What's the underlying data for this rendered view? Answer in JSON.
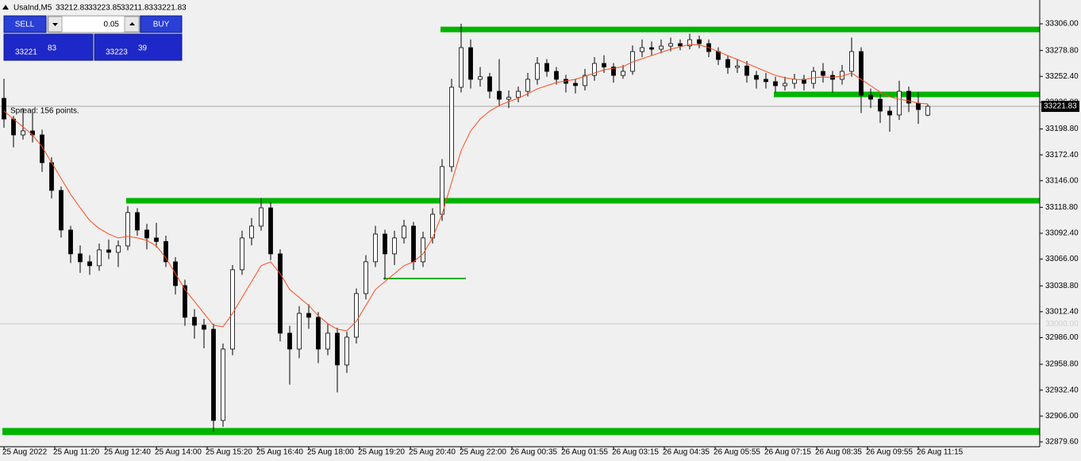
{
  "chart_data": {
    "type": "candlestick",
    "title": "UsaInd,M5",
    "header_values": [
      "33212.83",
      "33223.85",
      "33211.83",
      "33221.83"
    ],
    "spread_text": "Spread: 156 points.",
    "trade_panel": {
      "sell": "SELL",
      "buy": "BUY",
      "lot": "0.05",
      "bid_big": "33221",
      "bid_small": "83",
      "ask_big": "33223",
      "ask_small": "39"
    },
    "up_color": "#ffffff",
    "down_color": "#000000",
    "ma_color": "#ff4a1c",
    "ylim": [
      32874.7,
      33330.3
    ],
    "yticks": [
      {
        "value": 33306.0,
        "label": "33306.00"
      },
      {
        "value": 33278.8,
        "label": "33278.80"
      },
      {
        "value": 33252.4,
        "label": "33252.40"
      },
      {
        "value": 33226.0,
        "label": "33226.00"
      },
      {
        "value": 33198.8,
        "label": "33198.80"
      },
      {
        "value": 33172.4,
        "label": "33172.40"
      },
      {
        "value": 33146.0,
        "label": "33146.00"
      },
      {
        "value": 33118.8,
        "label": "33118.80"
      },
      {
        "value": 33092.4,
        "label": "33092.40"
      },
      {
        "value": 33066.0,
        "label": "33066.00"
      },
      {
        "value": 33038.8,
        "label": "33038.80"
      },
      {
        "value": 33012.4,
        "label": "33012.40"
      },
      {
        "value": 32986.0,
        "label": "32986.00"
      },
      {
        "value": 32958.8,
        "label": "32958.80"
      },
      {
        "value": 32932.4,
        "label": "32932.40"
      },
      {
        "value": 32906.0,
        "label": "32906.00"
      },
      {
        "value": 32879.6,
        "label": "32879.60"
      }
    ],
    "xlabels": [
      "25 Aug 2022",
      "25 Aug 11:20",
      "25 Aug 12:40",
      "25 Aug 14:00",
      "25 Aug 15:20",
      "25 Aug 16:40",
      "25 Aug 18:00",
      "25 Aug 19:20",
      "25 Aug 20:40",
      "25 Aug 22:00",
      "26 Aug 00:35",
      "26 Aug 01:55",
      "26 Aug 03:15",
      "26 Aug 04:35",
      "26 Aug 05:55",
      "26 Aug 07:15",
      "26 Aug 08:35",
      "26 Aug 09:55",
      "26 Aug 11:15"
    ],
    "bid": {
      "value": 33221.83,
      "label": "33221.83"
    },
    "price_line": {
      "value": 33000,
      "label": "33000.00"
    },
    "levels": [
      {
        "value": 33300.3,
        "start": 46,
        "width": 7,
        "color": "#00b400"
      },
      {
        "value": 33234.0,
        "start": 81,
        "width": 7,
        "color": "#00b400"
      },
      {
        "value": 33125.6,
        "start": 13,
        "width": 7,
        "color": "#00b400"
      },
      {
        "value": 32890.2,
        "start": 0,
        "width": 9,
        "color": "#00b400"
      },
      {
        "value": 33046.3,
        "start": 40,
        "end": 48,
        "width": 2,
        "color": "#00b400"
      }
    ],
    "candles": [
      [
        33230,
        33250,
        33200,
        33208.9
      ],
      [
        33208.9,
        33212,
        33180,
        33192.7
      ],
      [
        33192.7,
        33220,
        33188,
        33196.8
      ],
      [
        33196.8,
        33215,
        33185,
        33192.7
      ],
      [
        33192.7,
        33198,
        33155,
        33164.4
      ],
      [
        33164.4,
        33170,
        33128,
        33136.1
      ],
      [
        33136.1,
        33140,
        33088,
        33095.7
      ],
      [
        33095.7,
        33100,
        33062,
        33071.4
      ],
      [
        33071.4,
        33080,
        33052,
        33063.3
      ],
      [
        33063.3,
        33070,
        33050,
        33059.3
      ],
      [
        33059.3,
        33082,
        33054,
        33075.4
      ],
      [
        33075.4,
        33086,
        33066,
        33073.0
      ],
      [
        33073.0,
        33085,
        33058,
        33079.5
      ],
      [
        33079.5,
        33120,
        33075,
        33113.5
      ],
      [
        33113.5,
        33118,
        33090,
        33095.7
      ],
      [
        33095.7,
        33102,
        33076,
        33087.6
      ],
      [
        33087.6,
        33103,
        33078,
        33084.0
      ],
      [
        33084.0,
        33090,
        33058,
        33063.3
      ],
      [
        33063.3,
        33068,
        33030,
        33039.0
      ],
      [
        33039.0,
        33045,
        32998,
        33006.7
      ],
      [
        33006.7,
        33015,
        32985,
        32998.6
      ],
      [
        32998.6,
        33005,
        32975,
        32994.5
      ],
      [
        32994.5,
        33000,
        32890,
        32901.5
      ],
      [
        32901.5,
        32980,
        32895,
        32974.3
      ],
      [
        32974.3,
        33060,
        32968,
        33055.2
      ],
      [
        33055.2,
        33095,
        33050,
        33087.6
      ],
      [
        33087.6,
        33108,
        33080,
        33099.7
      ],
      [
        33099.7,
        33128,
        33095,
        33118.3
      ],
      [
        33118.3,
        33124,
        33065,
        33071.4
      ],
      [
        33071.4,
        33076,
        32982,
        32990.5
      ],
      [
        32990.5,
        32998,
        32938,
        32974.3
      ],
      [
        32974.3,
        33018,
        32965,
        33010.7
      ],
      [
        33010.7,
        33020,
        32995,
        33006.7
      ],
      [
        33006.7,
        33012,
        32960,
        32974.3
      ],
      [
        32974.3,
        33000,
        32968,
        32990.5
      ],
      [
        32990.5,
        32996,
        32930,
        32958.1
      ],
      [
        32958.1,
        32992,
        32950,
        32986.4
      ],
      [
        32986.4,
        33036,
        32980,
        33030.9
      ],
      [
        33030.9,
        33070,
        33025,
        33063.3
      ],
      [
        33063.3,
        33100,
        33058,
        33091.6
      ],
      [
        33091.6,
        33096,
        33045,
        33071.4
      ],
      [
        33071.4,
        33095,
        33060,
        33087.6
      ],
      [
        33087.6,
        33106,
        33082,
        33099.7
      ],
      [
        33099.7,
        33104,
        33055,
        33063.3
      ],
      [
        33063.3,
        33094,
        33058,
        33087.6
      ],
      [
        33087.6,
        33118,
        33082,
        33111.8
      ],
      [
        33111.8,
        33168,
        33105,
        33160.4
      ],
      [
        33160.4,
        33250,
        33155,
        33241.3
      ],
      [
        33241.3,
        33306,
        33236,
        33281.7
      ],
      [
        33281.7,
        33290,
        33240,
        33249.4
      ],
      [
        33249.4,
        33262,
        33242,
        33252.0
      ],
      [
        33252.0,
        33256,
        33230,
        33237.2
      ],
      [
        33237.2,
        33270,
        33222,
        33229.1
      ],
      [
        33229.1,
        33238,
        33220,
        33231.0
      ],
      [
        33231.0,
        33242,
        33226,
        33237.2
      ],
      [
        33237.2,
        33256,
        33232,
        33249.4
      ],
      [
        33249.4,
        33272,
        33244,
        33265.6
      ],
      [
        33265.6,
        33270,
        33252,
        33257.5
      ],
      [
        33257.5,
        33262,
        33244,
        33249.4
      ],
      [
        33249.4,
        33254,
        33236,
        33245.3
      ],
      [
        33245.3,
        33250,
        33235,
        33243.0
      ],
      [
        33243.0,
        33260,
        33238,
        33253.4
      ],
      [
        33253.4,
        33272,
        33248,
        33265.6
      ],
      [
        33265.6,
        33274,
        33256,
        33262.0
      ],
      [
        33262.0,
        33266,
        33246,
        33253.4
      ],
      [
        33253.4,
        33264,
        33250,
        33257.5
      ],
      [
        33257.5,
        33284,
        33254,
        33277.7
      ],
      [
        33277.7,
        33290,
        33272,
        33281.7
      ],
      [
        33281.7,
        33288,
        33274,
        33280.1
      ],
      [
        33280.1,
        33290,
        33276,
        33283.3
      ],
      [
        33283.3,
        33292,
        33278,
        33285.8
      ],
      [
        33285.8,
        33290,
        33279,
        33283.5
      ],
      [
        33283.5,
        33296,
        33280,
        33289.8
      ],
      [
        33289.8,
        33294,
        33281,
        33285.8
      ],
      [
        33285.8,
        33290,
        33272,
        33277.7
      ],
      [
        33277.7,
        33282,
        33264,
        33269.6
      ],
      [
        33269.6,
        33274,
        33255,
        33261.5
      ],
      [
        33261.5,
        33270,
        33256,
        33263.0
      ],
      [
        33263.0,
        33268,
        33246,
        33253.4
      ],
      [
        33253.4,
        33258,
        33240,
        33249.4
      ],
      [
        33249.4,
        33256,
        33240,
        33247.0
      ],
      [
        33247.0,
        33252,
        33236,
        33242.9
      ],
      [
        33242.9,
        33252,
        33238,
        33245.3
      ],
      [
        33245.3,
        33255,
        33240,
        33249.4
      ],
      [
        33249.4,
        33254,
        33238,
        33245.3
      ],
      [
        33245.3,
        33262,
        33240,
        33257.5
      ],
      [
        33257.5,
        33266,
        33246,
        33253.4
      ],
      [
        33253.4,
        33258,
        33236,
        33249.4
      ],
      [
        33249.4,
        33264,
        33244,
        33257.5
      ],
      [
        33257.5,
        33292,
        33252,
        33277.7
      ],
      [
        33277.7,
        33282,
        33215,
        33233.2
      ],
      [
        33233.2,
        33240,
        33220,
        33229.1
      ],
      [
        33229.1,
        33234,
        33205,
        33217.0
      ],
      [
        33217.0,
        33222,
        33196,
        33213.0
      ],
      [
        33213.0,
        33248,
        33208,
        33237.2
      ],
      [
        33237.2,
        33242,
        33216,
        33225.1
      ],
      [
        33225.1,
        33236,
        33204,
        33218.6
      ],
      [
        33212.83,
        33223.85,
        33211.83,
        33221.83
      ]
    ],
    "ma": [
      33217.0,
      33208.9,
      33200.8,
      33192.7,
      33180.6,
      33164.4,
      33148.2,
      33132.1,
      33118.3,
      33105.4,
      33097.3,
      33091.6,
      33087.6,
      33089.2,
      33087.6,
      33085.1,
      33079.5,
      33067.3,
      33051.2,
      33035.0,
      33022.9,
      33010.7,
      32998.6,
      32997.0,
      33010.7,
      33026.9,
      33043.1,
      33059.3,
      33063.3,
      33051.2,
      33035.0,
      33026.9,
      33018.8,
      33008.3,
      33000.2,
      32994.5,
      32993.0,
      33002.6,
      33018.8,
      33035.0,
      33043.1,
      33051.2,
      33059.3,
      33063.3,
      33071.4,
      33087.6,
      33111.8,
      33144.2,
      33176.6,
      33196.8,
      33208.9,
      33217.0,
      33222.7,
      33226.7,
      33230.0,
      33234.8,
      33239.7,
      33242.9,
      33246.1,
      33247.8,
      33249.4,
      33252.6,
      33255.8,
      33259.1,
      33260.7,
      33262.3,
      33267.2,
      33270.4,
      33273.6,
      33276.9,
      33280.1,
      33282.5,
      33285.0,
      33284.5,
      33281.7,
      33277.7,
      33273.6,
      33269.6,
      33265.6,
      33261.5,
      33257.5,
      33253.4,
      33251.0,
      33249.4,
      33249.0,
      33251.0,
      33251.8,
      33251.5,
      33252.6,
      33255.8,
      33249.4,
      33242.9,
      33236.4,
      33231.6,
      33229.1,
      33227.5,
      33225.1,
      33224.3
    ]
  }
}
